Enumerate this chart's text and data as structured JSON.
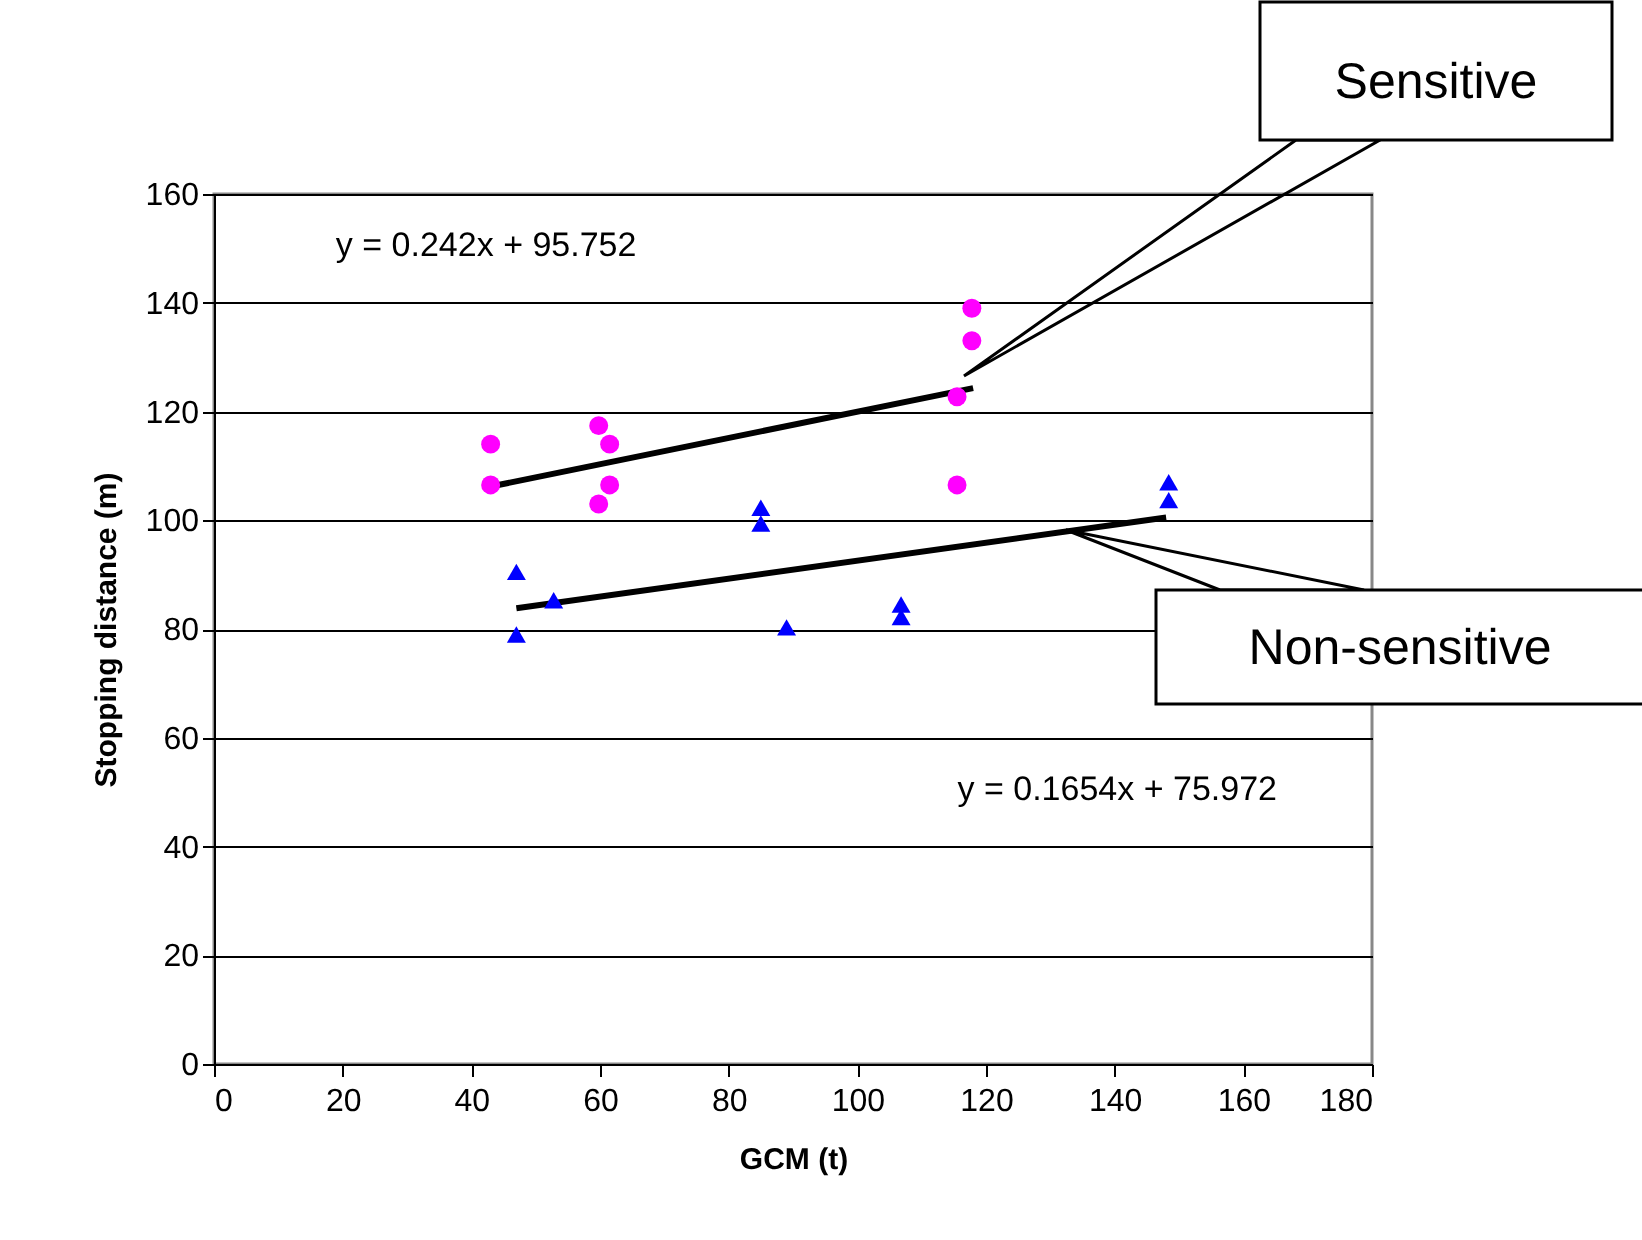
{
  "chart_data": {
    "type": "scatter",
    "xlabel": "GCM (t)",
    "ylabel": "Stopping distance (m)",
    "xlim": [
      0,
      180
    ],
    "xticks": [
      0,
      20,
      40,
      60,
      80,
      100,
      120,
      140,
      160,
      180
    ],
    "ylim": [
      0,
      160
    ],
    "yticks": [
      0,
      20,
      40,
      60,
      80,
      100,
      120,
      140,
      160
    ],
    "grid": "y",
    "legend": false,
    "annotations": [
      "y = 0.242x + 95.752",
      "y = 0.1654x + 75.972"
    ],
    "series": [
      {
        "color": "#ff00ff",
        "marker": "circle",
        "x": [
          43,
          43,
          59.8,
          61.5,
          61.5,
          59.8,
          117.8,
          117.8,
          115.5,
          115.5
        ],
        "values": [
          114,
          106.5,
          117.4,
          114,
          106.5,
          103,
          139,
          133,
          122.7,
          106.5
        ]
      },
      {
        "color": "#0000ff",
        "marker": "triangle",
        "x": [
          47,
          47,
          52.8,
          85,
          85,
          89,
          106.8,
          106.8,
          148.4,
          148.4
        ],
        "values": [
          90.5,
          79,
          85.3,
          102.3,
          99.4,
          80.3,
          84.5,
          82.2,
          107,
          103.7
        ]
      },
      {
        "type": "line",
        "name": "Sensitive",
        "color": "#000000",
        "marker": "none",
        "x": [
          43,
          118
        ],
        "values": [
          106.2,
          124.3
        ]
      },
      {
        "type": "line",
        "name": "Non-sensitive",
        "color": "#000000",
        "marker": "none",
        "x": [
          47,
          148
        ],
        "values": [
          83.8,
          100.5
        ]
      }
    ]
  }
}
